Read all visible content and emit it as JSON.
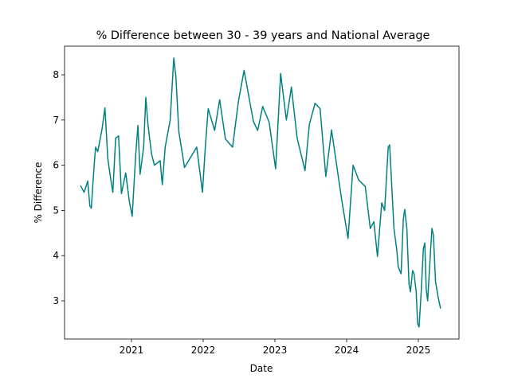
{
  "chart_data": {
    "type": "line",
    "title": "% Difference between 30 - 39 years and National Average",
    "x_label": "Date",
    "y_label": "% Difference",
    "x": [
      2020.29,
      2020.34,
      2020.39,
      2020.42,
      2020.44,
      2020.48,
      2020.5,
      2020.53,
      2020.59,
      2020.63,
      2020.67,
      2020.71,
      2020.74,
      2020.78,
      2020.82,
      2020.86,
      2020.92,
      2020.97,
      2021.01,
      2021.06,
      2021.09,
      2021.12,
      2021.17,
      2021.2,
      2021.23,
      2021.28,
      2021.32,
      2021.4,
      2021.43,
      2021.47,
      2021.54,
      2021.59,
      2021.62,
      2021.66,
      2021.74,
      2021.91,
      2021.99,
      2022.03,
      2022.07,
      2022.16,
      2022.23,
      2022.31,
      2022.41,
      2022.49,
      2022.57,
      2022.7,
      2022.76,
      2022.83,
      2022.92,
      2023.01,
      2023.08,
      2023.16,
      2023.23,
      2023.31,
      2023.42,
      2023.48,
      2023.56,
      2023.63,
      2023.71,
      2023.79,
      2023.93,
      2024.02,
      2024.09,
      2024.17,
      2024.26,
      2024.33,
      2024.38,
      2024.43,
      2024.49,
      2024.53,
      2024.58,
      2024.6,
      2024.66,
      2024.7,
      2024.72,
      2024.76,
      2024.79,
      2024.81,
      2024.84,
      2024.87,
      2024.89,
      2024.92,
      2024.94,
      2024.97,
      2024.99,
      2025.01,
      2025.04,
      2025.07,
      2025.09,
      2025.11,
      2025.13,
      2025.17,
      2025.19,
      2025.21,
      2025.24,
      2025.28,
      2025.31
    ],
    "values": [
      5.55,
      5.4,
      5.65,
      5.1,
      5.05,
      6.0,
      6.4,
      6.3,
      6.8,
      7.27,
      6.15,
      5.7,
      5.4,
      6.6,
      6.65,
      5.37,
      5.83,
      5.2,
      4.87,
      6.25,
      6.88,
      5.8,
      6.4,
      7.5,
      6.9,
      6.25,
      6.0,
      6.1,
      5.57,
      6.4,
      7.0,
      8.37,
      7.95,
      6.75,
      5.95,
      6.4,
      5.4,
      6.4,
      7.25,
      6.77,
      7.45,
      6.58,
      6.4,
      7.4,
      8.1,
      6.97,
      6.77,
      7.3,
      6.95,
      5.92,
      8.03,
      7.0,
      7.73,
      6.6,
      5.88,
      6.9,
      7.37,
      7.25,
      5.75,
      6.78,
      5.25,
      4.38,
      6.0,
      5.67,
      5.53,
      4.6,
      4.75,
      3.98,
      5.17,
      5.0,
      6.4,
      6.45,
      4.6,
      4.12,
      3.75,
      3.6,
      4.8,
      5.02,
      4.6,
      3.37,
      3.2,
      3.67,
      3.6,
      3.2,
      2.5,
      2.42,
      3.2,
      4.15,
      4.28,
      3.25,
      3.0,
      4.1,
      4.6,
      4.45,
      3.42,
      3.05,
      2.83
    ],
    "color": "#008080",
    "xlim": [
      2020.067,
      2025.567
    ],
    "xticks": [
      2021,
      2022,
      2023,
      2024,
      2025
    ],
    "ylim": [
      2.155,
      8.634
    ],
    "yticks": [
      3,
      4,
      5,
      6,
      7,
      8
    ]
  }
}
